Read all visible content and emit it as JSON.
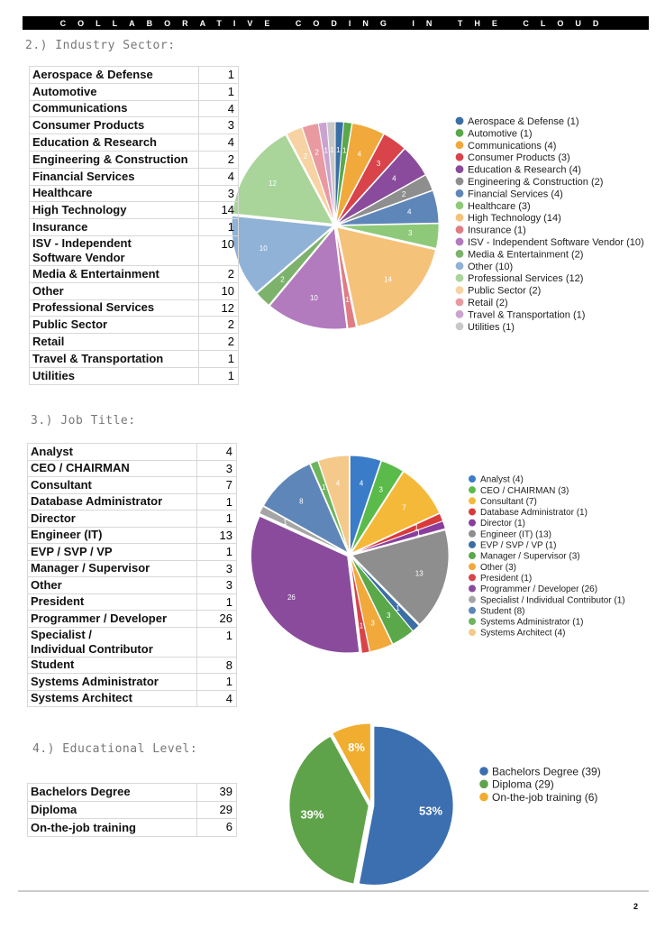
{
  "header": "COLLABORATIVE CODING IN THE CLOUD",
  "sections": [
    {
      "title": "2.) Industry Sector:",
      "table": {
        "rows": [
          [
            "Aerospace & Defense",
            1
          ],
          [
            "Automotive",
            1
          ],
          [
            "Communications",
            4
          ],
          [
            "Consumer Products",
            3
          ],
          [
            "Education & Research",
            4
          ],
          [
            "Engineering & Construction",
            2
          ],
          [
            "Financial Services",
            4
          ],
          [
            "Healthcare",
            3
          ],
          [
            "High Technology",
            14
          ],
          [
            "Insurance",
            1
          ],
          [
            "ISV - Independent\nSoftware Vendor",
            10
          ],
          [
            "Media & Entertainment",
            2
          ],
          [
            "Other",
            10
          ],
          [
            "Professional Services",
            12
          ],
          [
            "Public Sector",
            2
          ],
          [
            "Retail",
            2
          ],
          [
            "Travel & Transportation",
            1
          ],
          [
            "Utilities",
            1
          ]
        ]
      }
    },
    {
      "title": "3.) Job Title:",
      "table": {
        "rows": [
          [
            "Analyst",
            4
          ],
          [
            "CEO / CHAIRMAN",
            3
          ],
          [
            "Consultant",
            7
          ],
          [
            "Database Administrator",
            1
          ],
          [
            "Director",
            1
          ],
          [
            "Engineer (IT)",
            13
          ],
          [
            "EVP / SVP / VP",
            1
          ],
          [
            "Manager / Supervisor",
            3
          ],
          [
            "Other",
            3
          ],
          [
            "President",
            1
          ],
          [
            "Programmer / Developer",
            26
          ],
          [
            "Specialist /\nIndividual Contributor",
            1
          ],
          [
            "Student",
            8
          ],
          [
            "Systems Administrator",
            1
          ],
          [
            "Systems Architect",
            4
          ]
        ]
      }
    },
    {
      "title": "4.) Educational Level:",
      "table": {
        "rows": [
          [
            "Bachelors Degree",
            39
          ],
          [
            "Diploma",
            29
          ],
          [
            "On-the-job training",
            6
          ]
        ]
      }
    }
  ],
  "chart_data": [
    {
      "type": "pie",
      "categories": [
        "Aerospace & Defense (1)",
        "Automotive (1)",
        "Communications (4)",
        "Consumer Products (3)",
        "Education & Research (4)",
        "Engineering & Construction (2)",
        "Financial Services (4)",
        "Healthcare (3)",
        "High Technology (14)",
        "Insurance (1)",
        "ISV - Independent Software Vendor (10)",
        "Media & Entertainment (2)",
        "Other (10)",
        "Professional Services (12)",
        "Public Sector (2)",
        "Retail (2)",
        "Travel & Transportation (1)",
        "Utilities (1)"
      ],
      "values": [
        1,
        1,
        4,
        3,
        4,
        2,
        4,
        3,
        14,
        1,
        10,
        2,
        10,
        12,
        2,
        2,
        1,
        1
      ],
      "colors": [
        "#3a6ea5",
        "#5aa84a",
        "#f0a93a",
        "#d9434a",
        "#8a4b9c",
        "#8e8e8e",
        "#5f86b8",
        "#8ec97a",
        "#f5c27a",
        "#e07c84",
        "#b27bbd",
        "#7cb26c",
        "#8fb2d6",
        "#a9d49a",
        "#f7d3a3",
        "#e99aa0",
        "#c9a4d1",
        "#c8c8c8"
      ]
    },
    {
      "type": "pie",
      "categories": [
        "Analyst (4)",
        "CEO / CHAIRMAN (3)",
        "Consultant (7)",
        "Database Administrator (1)",
        "Director (1)",
        "Engineer (IT) (13)",
        "EVP / SVP / VP (1)",
        "Manager / Supervisor (3)",
        "Other (3)",
        "President (1)",
        "Programmer / Developer (26)",
        "Specialist / Individual Contributor (1)",
        "Student (8)",
        "Systems Administrator (1)",
        "Systems Architect (4)"
      ],
      "values": [
        4,
        3,
        7,
        1,
        1,
        13,
        1,
        3,
        3,
        1,
        26,
        1,
        8,
        1,
        4
      ],
      "colors": [
        "#3a7cc8",
        "#5bbb4a",
        "#f5b93a",
        "#d93a3a",
        "#8a3d9c",
        "#8e8e8e",
        "#3a6ea5",
        "#5aa84a",
        "#f0a93a",
        "#d9434a",
        "#8a4b9c",
        "#a5a5a5",
        "#5f86b8",
        "#6db45c",
        "#f5c98a"
      ]
    },
    {
      "type": "pie",
      "categories": [
        "Bachelors Degree (39)",
        "Diploma (29)",
        "On-the-job training (6)"
      ],
      "values": [
        53,
        39,
        8
      ],
      "value_labels": [
        "53%",
        "39%",
        "8%"
      ],
      "colors": [
        "#3b6fb0",
        "#5ea34a",
        "#f0ad30"
      ]
    }
  ],
  "page_number": "2"
}
